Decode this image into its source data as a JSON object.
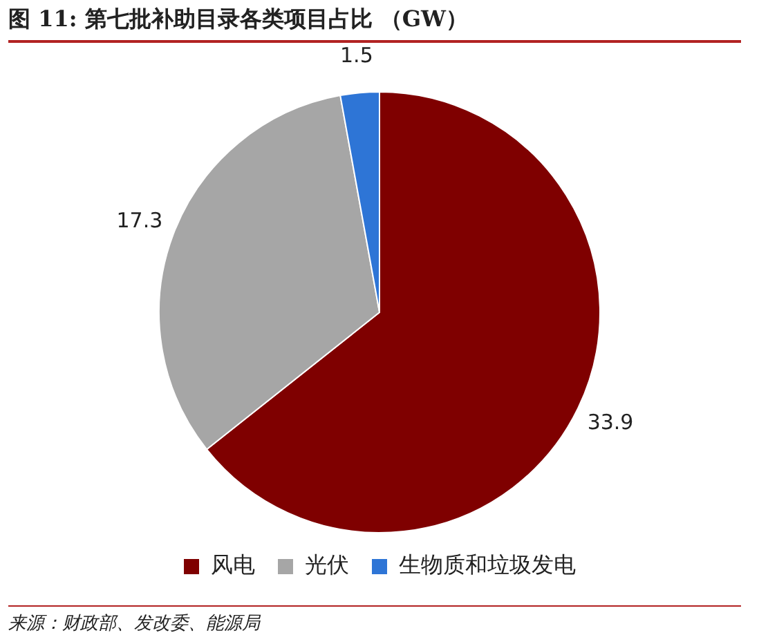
{
  "chart_data": {
    "type": "pie",
    "title": "图 11: 第七批补助目录各类项目占比 （GW）",
    "categories": [
      "风电",
      "光伏",
      "生物质和垃圾发电"
    ],
    "values": [
      33.9,
      17.3,
      1.5
    ],
    "colors": [
      "#7f0000",
      "#a6a6a6",
      "#2e75d6"
    ],
    "data_labels": true,
    "legend": "bottom",
    "annotations": [
      "来源：财政部、发改委、能源局"
    ]
  }
}
